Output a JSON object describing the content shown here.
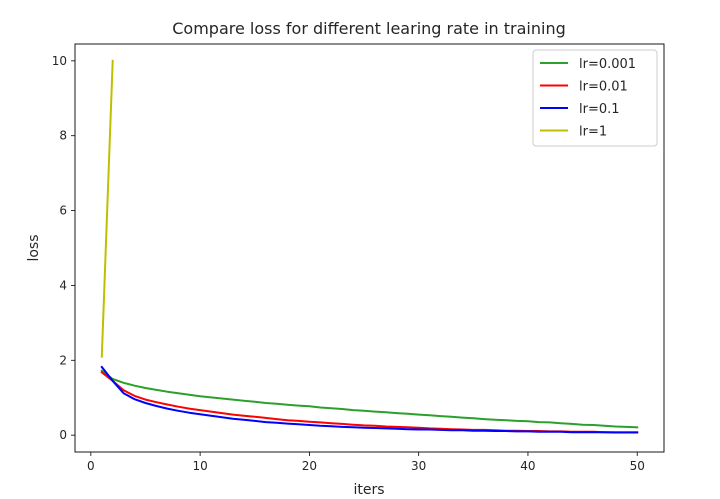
{
  "chart_data": {
    "type": "line",
    "title": "Compare loss for different learing rate in training",
    "xlabel": "iters",
    "ylabel": "loss",
    "xlim": [
      -1.45,
      52.45
    ],
    "ylim": [
      -0.45,
      10.45
    ],
    "xticks": [
      0,
      10,
      20,
      30,
      40,
      50
    ],
    "yticks": [
      0,
      2,
      4,
      6,
      8,
      10
    ],
    "grid": false,
    "legend": "top-right",
    "series": [
      {
        "name": "lr=0.001",
        "color": "#2ca02c",
        "x": [
          1,
          2,
          3,
          4,
          5,
          6,
          7,
          8,
          9,
          10,
          11,
          12,
          13,
          14,
          15,
          16,
          17,
          18,
          19,
          20,
          21,
          22,
          23,
          24,
          25,
          26,
          27,
          28,
          29,
          30,
          31,
          32,
          33,
          34,
          35,
          36,
          37,
          38,
          39,
          40,
          41,
          42,
          43,
          44,
          45,
          46,
          47,
          48,
          49,
          50
        ],
        "y": [
          1.72,
          1.5,
          1.4,
          1.32,
          1.26,
          1.21,
          1.16,
          1.12,
          1.08,
          1.04,
          1.01,
          0.98,
          0.95,
          0.92,
          0.89,
          0.86,
          0.84,
          0.81,
          0.79,
          0.77,
          0.74,
          0.72,
          0.7,
          0.67,
          0.65,
          0.63,
          0.61,
          0.59,
          0.57,
          0.55,
          0.53,
          0.51,
          0.49,
          0.47,
          0.45,
          0.43,
          0.41,
          0.4,
          0.38,
          0.37,
          0.35,
          0.34,
          0.32,
          0.3,
          0.28,
          0.27,
          0.25,
          0.23,
          0.22,
          0.21
        ]
      },
      {
        "name": "lr=0.01",
        "color": "#ff0000",
        "x": [
          1,
          2,
          3,
          4,
          5,
          6,
          7,
          8,
          9,
          10,
          11,
          12,
          13,
          14,
          15,
          16,
          17,
          18,
          19,
          20,
          21,
          22,
          23,
          24,
          25,
          26,
          27,
          28,
          29,
          30,
          31,
          32,
          33,
          34,
          35,
          36,
          37,
          38,
          39,
          40,
          41,
          42,
          43,
          44,
          45,
          46,
          47,
          48,
          49,
          50
        ],
        "y": [
          1.68,
          1.45,
          1.2,
          1.05,
          0.95,
          0.88,
          0.82,
          0.76,
          0.71,
          0.67,
          0.63,
          0.59,
          0.55,
          0.52,
          0.49,
          0.46,
          0.43,
          0.4,
          0.38,
          0.36,
          0.34,
          0.32,
          0.3,
          0.28,
          0.26,
          0.25,
          0.23,
          0.22,
          0.21,
          0.2,
          0.18,
          0.17,
          0.16,
          0.15,
          0.14,
          0.14,
          0.13,
          0.12,
          0.12,
          0.11,
          0.11,
          0.1,
          0.1,
          0.09,
          0.09,
          0.09,
          0.08,
          0.08,
          0.08,
          0.08
        ]
      },
      {
        "name": "lr=0.1",
        "color": "#0000ff",
        "x": [
          1,
          2,
          3,
          4,
          5,
          6,
          7,
          8,
          9,
          10,
          11,
          12,
          13,
          14,
          15,
          16,
          17,
          18,
          19,
          20,
          21,
          22,
          23,
          24,
          25,
          26,
          27,
          28,
          29,
          30,
          31,
          32,
          33,
          34,
          35,
          36,
          37,
          38,
          39,
          40,
          41,
          42,
          43,
          44,
          45,
          46,
          47,
          48,
          49,
          50
        ],
        "y": [
          1.82,
          1.45,
          1.12,
          0.96,
          0.86,
          0.78,
          0.71,
          0.65,
          0.6,
          0.56,
          0.52,
          0.48,
          0.44,
          0.41,
          0.38,
          0.35,
          0.33,
          0.31,
          0.29,
          0.27,
          0.25,
          0.24,
          0.22,
          0.21,
          0.2,
          0.19,
          0.18,
          0.17,
          0.16,
          0.15,
          0.15,
          0.14,
          0.13,
          0.13,
          0.12,
          0.12,
          0.11,
          0.11,
          0.1,
          0.1,
          0.09,
          0.09,
          0.09,
          0.08,
          0.08,
          0.08,
          0.08,
          0.07,
          0.07,
          0.07
        ]
      },
      {
        "name": "lr=1",
        "color": "#bfbf00",
        "x": [
          1,
          2
        ],
        "y": [
          2.1,
          10.0
        ]
      }
    ]
  }
}
